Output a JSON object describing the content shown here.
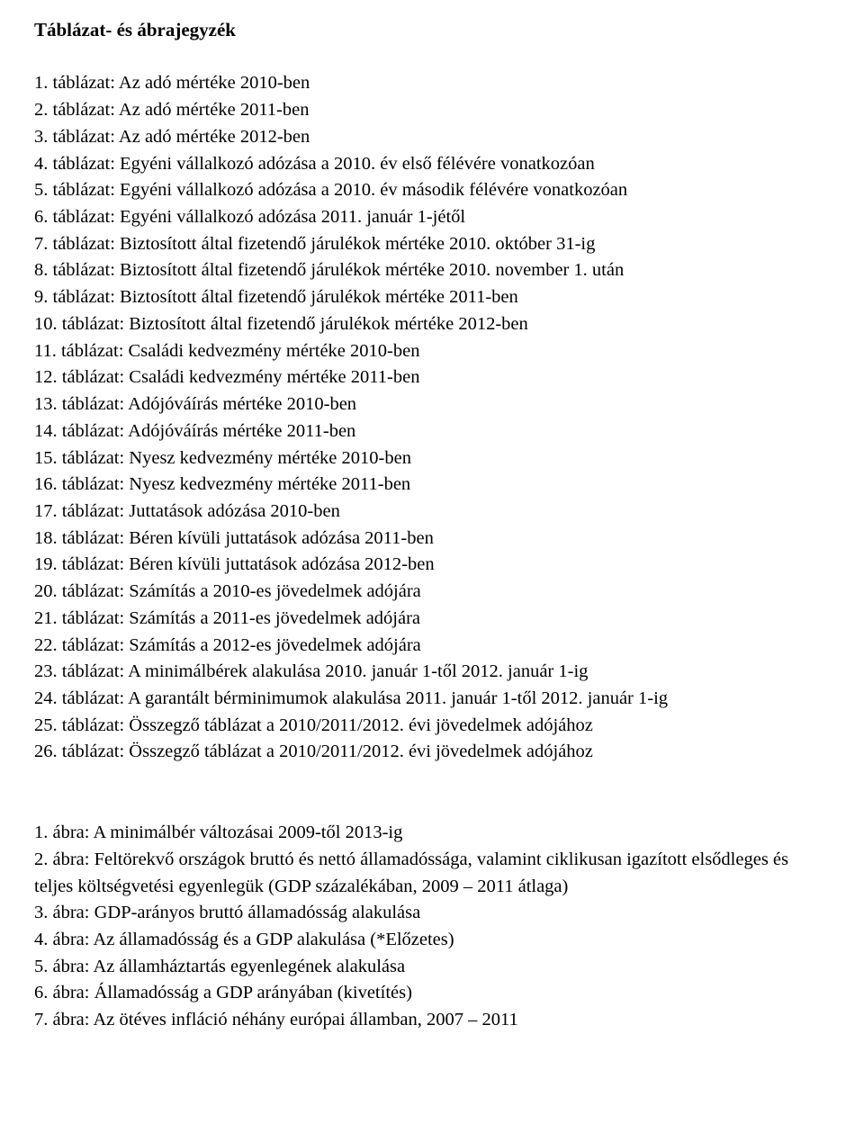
{
  "title": "Táblázat- és ábrajegyzék",
  "tables": [
    "1. táblázat: Az adó mértéke 2010-ben",
    "2. táblázat: Az adó mértéke 2011-ben",
    "3. táblázat: Az adó mértéke 2012-ben",
    "4. táblázat: Egyéni vállalkozó adózása a 2010. év első félévére vonatkozóan",
    "5. táblázat: Egyéni vállalkozó adózása a 2010. év második félévére vonatkozóan",
    "6. táblázat: Egyéni vállalkozó adózása 2011. január 1-jétől",
    "7. táblázat: Biztosított által fizetendő járulékok mértéke 2010. október 31-ig",
    "8. táblázat: Biztosított által fizetendő járulékok mértéke 2010. november 1. után",
    "9. táblázat: Biztosított által fizetendő járulékok mértéke 2011-ben",
    "10. táblázat: Biztosított által fizetendő járulékok mértéke 2012-ben",
    "11. táblázat: Családi kedvezmény mértéke 2010-ben",
    "12. táblázat: Családi kedvezmény mértéke 2011-ben",
    "13. táblázat: Adójóváírás mértéke 2010-ben",
    "14. táblázat: Adójóváírás mértéke 2011-ben",
    "15. táblázat: Nyesz kedvezmény mértéke 2010-ben",
    "16. táblázat: Nyesz kedvezmény mértéke 2011-ben",
    "17. táblázat: Juttatások adózása 2010-ben",
    "18. táblázat: Béren kívüli juttatások adózása 2011-ben",
    "19. táblázat: Béren kívüli juttatások adózása 2012-ben",
    "20. táblázat: Számítás a 2010-es jövedelmek adójára",
    "21. táblázat: Számítás a 2011-es jövedelmek adójára",
    "22. táblázat: Számítás a 2012-es jövedelmek adójára",
    "23. táblázat: A minimálbérek alakulása 2010. január 1-től 2012. január 1-ig",
    "24. táblázat: A garantált bérminimumok alakulása 2011. január 1-től 2012. január 1-ig",
    "25. táblázat: Összegző táblázat a 2010/2011/2012. évi jövedelmek adójához",
    "26. táblázat: Összegző táblázat a 2010/2011/2012. évi jövedelmek adójához"
  ],
  "figures": [
    "1. ábra: A minimálbér változásai 2009-től 2013-ig",
    "2. ábra: Feltörekvő országok bruttó és nettó államadóssága, valamint ciklikusan igazított elsődleges és teljes költségvetési egyenlegük (GDP százalékában, 2009 – 2011 átlaga)",
    "3. ábra: GDP-arányos bruttó államadósság alakulása",
    "4. ábra: Az államadósság és a GDP alakulása (*Előzetes)",
    "5. ábra: Az államháztartás egyenlegének alakulása",
    "6. ábra: Államadósság a GDP arányában (kivetítés)",
    "7. ábra: Az ötéves infláció néhány európai államban, 2007 – 2011"
  ]
}
